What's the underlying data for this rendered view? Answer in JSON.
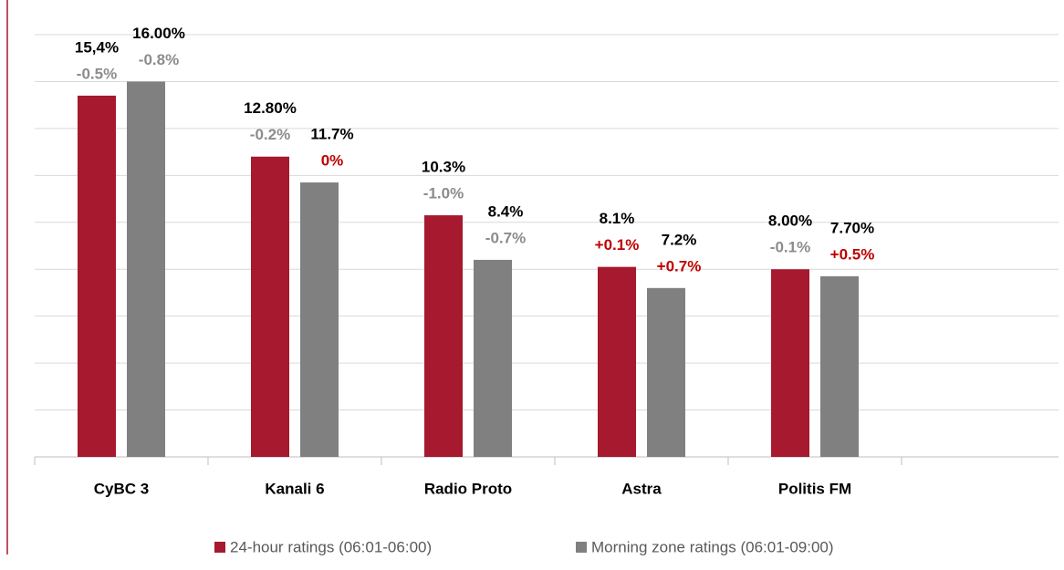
{
  "chart_data": {
    "type": "bar",
    "categories": [
      "CyBC 3",
      "Kanali 6",
      "Radio Proto",
      "Astra",
      "Politis FM"
    ],
    "series": [
      {
        "name": "24-hour ratings (06:01-06:00)",
        "color": "#a6192e",
        "values": [
          15.4,
          12.8,
          10.3,
          8.1,
          8.0
        ],
        "value_labels": [
          "15,4%",
          "12.80%",
          "10.3%",
          "8.1%",
          "8.00%"
        ],
        "changes": [
          -0.5,
          -0.2,
          -1.0,
          0.1,
          -0.1
        ],
        "change_labels": [
          "-0.5%",
          "-0.2%",
          "-1.0%",
          "+0.1%",
          "-0.1%"
        ]
      },
      {
        "name": "Morning zone ratings (06:01-09:00)",
        "color": "#808080",
        "values": [
          16.0,
          11.7,
          8.4,
          7.2,
          7.7
        ],
        "value_labels": [
          "16.00%",
          "11.7%",
          "8.4%",
          "7.2%",
          "7.70%"
        ],
        "changes": [
          -0.8,
          0,
          -0.7,
          0.7,
          0.5
        ],
        "change_labels": [
          "-0.8%",
          "0%",
          "-0.7%",
          "+0.7%",
          "+0.5%"
        ]
      }
    ],
    "ylim": [
      0,
      18
    ],
    "yticks": [
      0,
      2,
      4,
      6,
      8,
      10,
      12,
      14,
      16,
      18
    ],
    "grid": true,
    "change_up_color": "#c00000",
    "change_down_color": "#8c8c8c",
    "legend": "bottom"
  }
}
